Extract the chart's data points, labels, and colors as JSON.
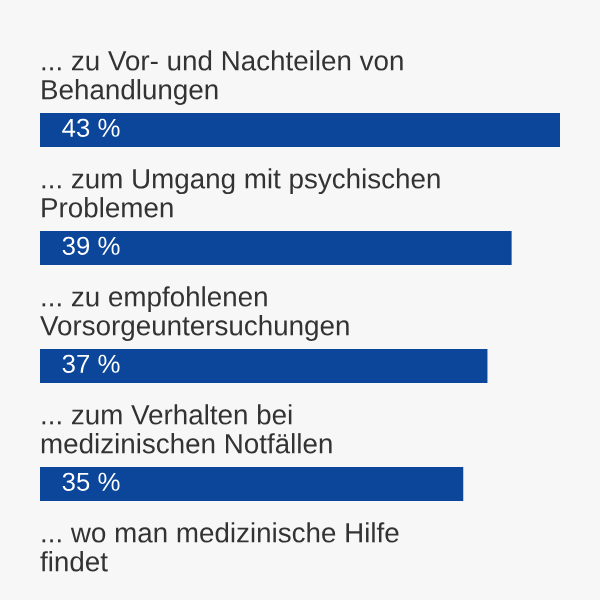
{
  "chart_data": {
    "type": "bar",
    "orientation": "horizontal",
    "categories": [
      "... zu Vor- und Nachteilen von Behandlungen",
      "... zum Umgang mit psychischen Problemen",
      "... zu empfohlenen Vorsorgeuntersuchungen",
      "... zum Verhalten bei medizinischen Notfällen",
      "... wo man medizinische Hilfe findet"
    ],
    "values": [
      43,
      39,
      37,
      35,
      null
    ],
    "color": "#0b469b",
    "value_labels": [
      "43 %",
      "39 %",
      "37 %",
      "35 %",
      null
    ]
  }
}
